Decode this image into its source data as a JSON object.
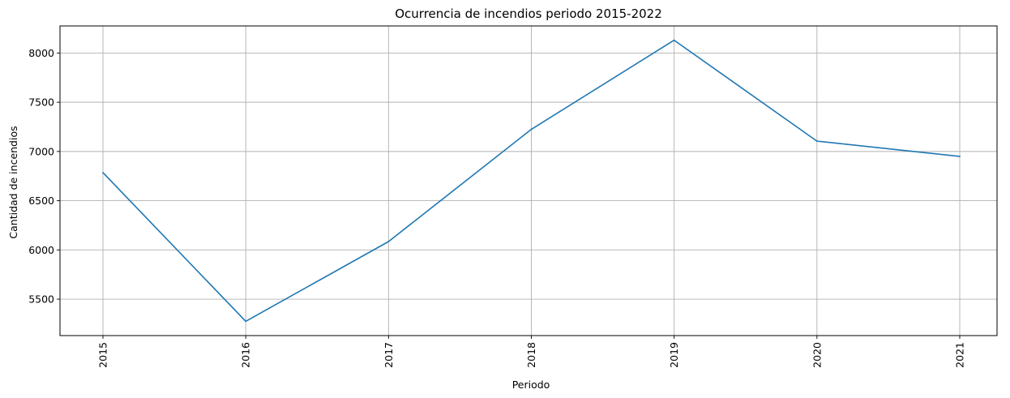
{
  "chart_data": {
    "type": "line",
    "title": "Ocurrencia de incendios periodo 2015-2022",
    "xlabel": "Periodo",
    "ylabel": "Cantidad de incendios",
    "categories": [
      "2015",
      "2016",
      "2017",
      "2018",
      "2019",
      "2020",
      "2021"
    ],
    "series": [
      {
        "color": "#1f77b4",
        "values": [
          6785,
          5275,
          6085,
          7225,
          8130,
          7105,
          6950
        ]
      }
    ],
    "yticks": [
      5500,
      6000,
      6500,
      7000,
      7500,
      8000
    ],
    "ylim": [
      5130,
      8275
    ],
    "grid": true,
    "xtick_rotation": 90
  }
}
